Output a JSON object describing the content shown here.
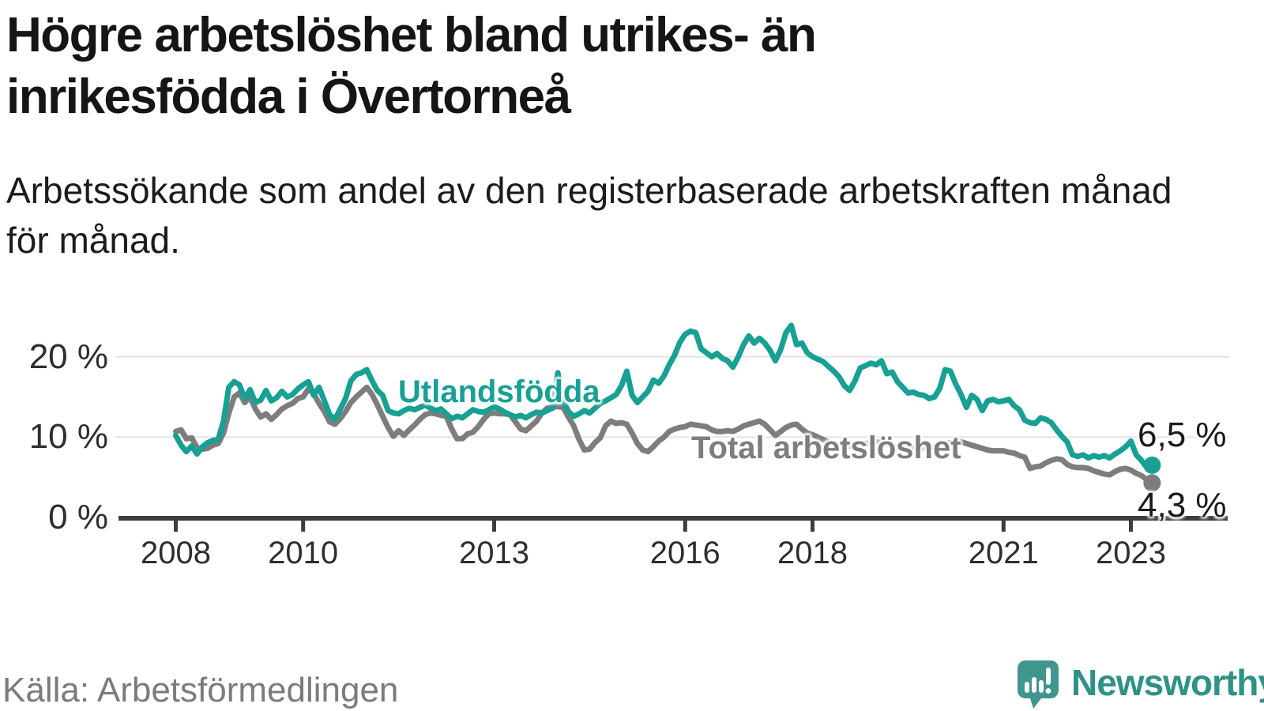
{
  "header": {
    "title_lines": [
      "Högre arbetslöshet bland utrikes- än",
      "inrikesfödda i Övertorneå"
    ],
    "subtitle_lines": [
      "Arbetssökande som andel av den registerbaserade arbetskraften månad",
      "för månad."
    ]
  },
  "footer": {
    "source": "Källa: Arbetsförmedlingen",
    "brand": "Newsworthy",
    "brand_color": "#2e9287",
    "brand_icon": "speech-bubble-bar-chart"
  },
  "chart_data": {
    "type": "line",
    "title": "Högre arbetslöshet bland utrikes- än inrikesfödda i Övertorneå",
    "unit": "%",
    "frequency": "monthly",
    "start": {
      "year": 2008,
      "month": 1
    },
    "end": {
      "year": 2023,
      "month": 5
    },
    "x_tick_years": [
      2008,
      2010,
      2013,
      2016,
      2018,
      2021,
      2023
    ],
    "y_ticks": [
      {
        "value": 0,
        "label": "0 %"
      },
      {
        "value": 10,
        "label": "10 %"
      },
      {
        "value": 20,
        "label": "20 %"
      }
    ],
    "ylim": [
      0,
      26
    ],
    "grid": "horizontal",
    "axis_color": "#3d3d3d",
    "grid_color": "#e3e3e3",
    "series": [
      {
        "name": "Utlandsfödda",
        "color": "#17a094",
        "end_label": "6,5 %",
        "end_value": 6.5,
        "values": [
          10.2,
          9.0,
          8.2,
          8.9,
          7.9,
          8.8,
          9.3,
          9.6,
          9.7,
          12.0,
          16.2,
          16.9,
          16.5,
          14.8,
          15.9,
          14.3,
          14.6,
          15.8,
          14.5,
          14.9,
          15.7,
          15.0,
          15.3,
          16.0,
          16.5,
          16.9,
          15.2,
          16.2,
          14.5,
          12.8,
          12.2,
          13.5,
          14.8,
          17.0,
          17.8,
          18.0,
          18.4,
          17.0,
          15.8,
          15.2,
          13.3,
          13.0,
          12.9,
          13.3,
          13.6,
          13.4,
          13.7,
          14.0,
          13.6,
          13.3,
          13.5,
          12.9,
          12.3,
          12.6,
          12.4,
          12.9,
          13.4,
          13.2,
          13.1,
          13.4,
          13.8,
          13.5,
          13.1,
          12.8,
          12.5,
          12.7,
          12.4,
          12.8,
          13.1,
          13.0,
          13.3,
          13.6,
          18.0,
          14.5,
          13.2,
          12.6,
          12.9,
          13.3,
          13.0,
          13.6,
          14.2,
          14.5,
          14.9,
          15.3,
          16.4,
          18.2,
          15.2,
          14.3,
          15.0,
          15.7,
          17.1,
          16.7,
          17.6,
          19.0,
          20.2,
          21.8,
          22.8,
          23.2,
          23.0,
          21.0,
          20.5,
          20.0,
          20.4,
          19.8,
          19.5,
          18.7,
          20.0,
          21.5,
          22.6,
          21.7,
          22.3,
          21.7,
          20.8,
          19.5,
          20.9,
          23.0,
          23.9,
          21.5,
          21.7,
          20.5,
          20.0,
          19.7,
          19.4,
          18.8,
          18.2,
          17.5,
          16.4,
          15.8,
          17.0,
          18.6,
          18.9,
          19.2,
          19.0,
          19.5,
          17.9,
          18.1,
          16.9,
          16.2,
          15.5,
          15.6,
          15.3,
          15.2,
          14.8,
          15.0,
          16.1,
          18.4,
          18.2,
          16.6,
          15.3,
          13.7,
          15.2,
          14.7,
          13.3,
          14.5,
          14.7,
          14.4,
          14.5,
          14.7,
          13.9,
          13.4,
          12.1,
          11.8,
          11.7,
          12.4,
          12.2,
          11.8,
          10.9,
          10.1,
          9.4,
          7.8,
          7.6,
          7.8,
          7.4,
          7.7,
          7.5,
          7.7,
          7.4,
          7.9,
          8.3,
          8.8,
          9.5,
          7.8,
          7.1,
          6.2,
          6.5
        ]
      },
      {
        "name": "Total arbetslöshet",
        "color": "#7d7d7d",
        "end_label": "4,3 %",
        "end_value": 4.3,
        "values": [
          10.7,
          10.9,
          9.8,
          9.9,
          8.7,
          8.5,
          8.6,
          9.0,
          9.2,
          10.5,
          13.0,
          15.0,
          15.5,
          14.3,
          15.0,
          13.5,
          12.5,
          12.9,
          12.2,
          12.8,
          13.5,
          13.9,
          14.2,
          14.8,
          15.0,
          16.0,
          15.4,
          14.2,
          13.2,
          11.9,
          11.6,
          12.3,
          13.2,
          14.3,
          15.0,
          15.6,
          16.2,
          15.3,
          14.0,
          12.6,
          11.2,
          10.1,
          10.8,
          10.2,
          10.9,
          11.5,
          12.2,
          12.8,
          13.0,
          12.9,
          12.7,
          12.6,
          11.0,
          9.8,
          9.8,
          10.4,
          10.6,
          11.3,
          12.2,
          12.9,
          13.0,
          12.9,
          12.9,
          12.8,
          11.9,
          11.0,
          10.8,
          11.4,
          12.0,
          13.0,
          13.6,
          13.8,
          13.8,
          13.7,
          12.5,
          11.4,
          9.7,
          8.4,
          8.5,
          9.3,
          9.9,
          11.4,
          12.0,
          11.7,
          11.8,
          11.6,
          10.5,
          9.2,
          8.4,
          8.2,
          8.8,
          9.5,
          10.0,
          10.7,
          11.0,
          11.2,
          11.3,
          11.6,
          11.5,
          11.4,
          11.3,
          10.9,
          10.7,
          10.7,
          10.8,
          10.7,
          11.0,
          11.4,
          11.6,
          11.8,
          12.0,
          11.6,
          10.9,
          10.2,
          10.7,
          11.2,
          11.5,
          11.6,
          11.0,
          10.5,
          10.3,
          10.0,
          9.7,
          9.4,
          9.1,
          8.9,
          8.8,
          8.9,
          9.0,
          9.1,
          9.2,
          9.3,
          9.4,
          9.3,
          9.1,
          8.9,
          8.7,
          8.6,
          8.5,
          8.6,
          8.6,
          8.7,
          8.7,
          8.8,
          9.0,
          9.1,
          9.3,
          9.5,
          9.4,
          9.2,
          9.0,
          8.8,
          8.6,
          8.4,
          8.3,
          8.3,
          8.3,
          8.1,
          8.0,
          7.7,
          7.5,
          6.1,
          6.3,
          6.4,
          6.8,
          7.1,
          7.3,
          7.2,
          6.6,
          6.3,
          6.2,
          6.2,
          6.1,
          5.8,
          5.6,
          5.4,
          5.3,
          5.7,
          6.0,
          6.1,
          5.9,
          5.5,
          5.2,
          4.7,
          4.3
        ]
      }
    ]
  }
}
